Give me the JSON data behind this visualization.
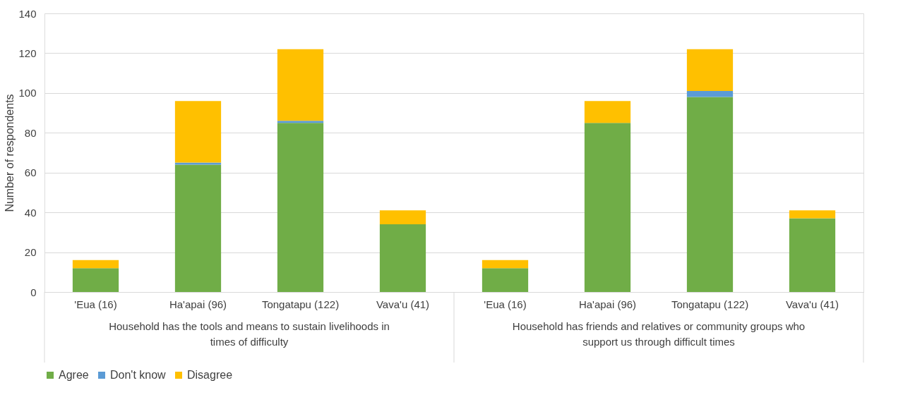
{
  "chart_data": {
    "type": "bar",
    "stacked": true,
    "ylabel": "Number of respondents",
    "categories": [
      "'Eua (16)",
      "Ha'apai (96)",
      "Tongatapu (122)",
      "Vava'u (41)",
      "'Eua (16)",
      "Ha'apai (96)",
      "Tongatapu (122)",
      "Vava'u (41)"
    ],
    "series": [
      {
        "name": "Agree",
        "color": "#70ad47",
        "values": [
          12,
          64,
          85,
          34,
          12,
          85,
          98,
          37
        ]
      },
      {
        "name": "Don't know",
        "color": "#5b9bd5",
        "values": [
          0,
          1,
          1,
          0,
          0,
          0,
          3,
          0
        ]
      },
      {
        "name": "Disagree",
        "color": "#ffc000",
        "values": [
          4,
          31,
          36,
          7,
          4,
          11,
          21,
          4
        ]
      }
    ],
    "annotations": [
      "Household has the tools and means to sustain  livelihoods in times of difficulty",
      "Household has friends and relatives or community groups who support us through difficult times"
    ],
    "ylim": [
      0,
      140
    ],
    "yticks": [
      0,
      20,
      40,
      60,
      80,
      100,
      120,
      140
    ],
    "grid": "y",
    "legend": "bottom"
  }
}
